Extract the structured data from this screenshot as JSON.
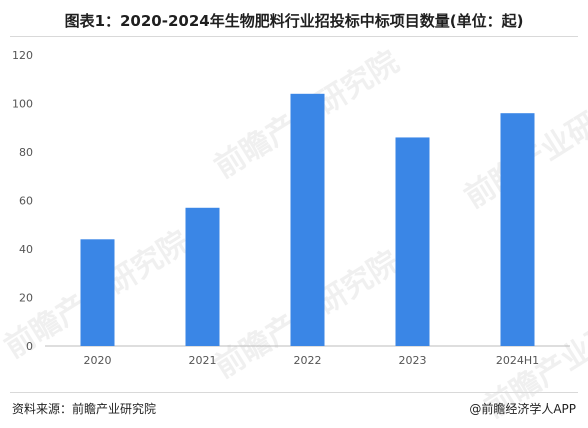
{
  "title": "图表1：2020-2024年生物肥料行业招投标中标项目数量(单位：起)",
  "source": "资料来源：前瞻产业研究院",
  "credit": "@前瞻经济学人APP",
  "watermark": "前瞻产业研究院",
  "colors": {
    "bar": "#3a86e6",
    "axis": "#bdbdbd",
    "tick_text": "#555555"
  },
  "chart_data": {
    "type": "bar",
    "title": "图表1：2020-2024年生物肥料行业招投标中标项目数量(单位：起)",
    "categories": [
      "2020",
      "2021",
      "2022",
      "2023",
      "2024H1"
    ],
    "values": [
      44,
      57,
      104,
      86,
      96
    ],
    "xlabel": "",
    "ylabel": "",
    "ylim": [
      0,
      120
    ],
    "yticks": [
      0,
      20,
      40,
      60,
      80,
      100,
      120
    ],
    "grid": false,
    "legend": "none"
  }
}
